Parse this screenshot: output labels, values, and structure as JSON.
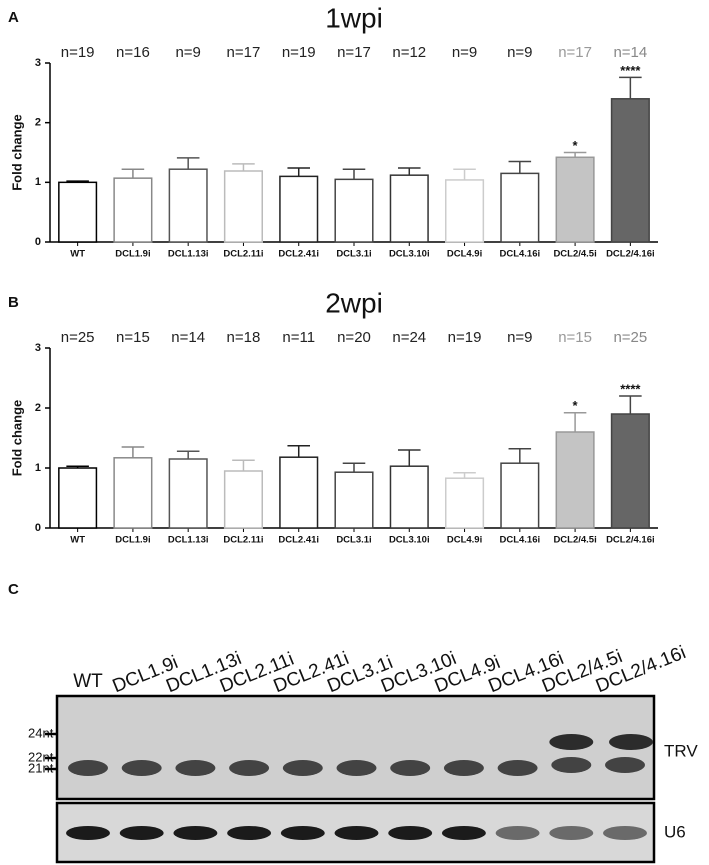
{
  "chart_data": [
    {
      "type": "bar",
      "panel_label": "A",
      "title": "1wpi",
      "y_label": "Fold change",
      "categories": [
        "WT",
        "DCL1.9i",
        "DCL1.13i",
        "DCL2.11i",
        "DCL2.41i",
        "DCL3.1i",
        "DCL3.10i",
        "DCL4.9i",
        "DCL4.16i",
        "DCL2/4.5i",
        "DCL2/4.16i"
      ],
      "values": [
        1.0,
        1.07,
        1.22,
        1.19,
        1.1,
        1.05,
        1.12,
        1.04,
        1.15,
        1.42,
        2.4
      ],
      "errors": [
        0.02,
        0.15,
        0.19,
        0.12,
        0.14,
        0.17,
        0.12,
        0.18,
        0.2,
        0.08,
        0.36
      ],
      "n_labels": [
        "n=19",
        "n=16",
        "n=9",
        "n=17",
        "n=19",
        "n=17",
        "n=12",
        "n=9",
        "n=9",
        "n=17",
        "n=14"
      ],
      "n_label_colors": [
        "#222",
        "#222",
        "#222",
        "#222",
        "#222",
        "#222",
        "#222",
        "#222",
        "#222",
        "#999",
        "#888"
      ],
      "significance": [
        null,
        null,
        null,
        null,
        null,
        null,
        null,
        null,
        null,
        "*",
        "****"
      ],
      "bar_colors": [
        "#000",
        "#888",
        "#555",
        "#bbb",
        "#222",
        "#444",
        "#333",
        "#ccc",
        "#444",
        "#999",
        "#444"
      ],
      "bar_fills": [
        "#fff",
        "#fff",
        "#fff",
        "#fff",
        "#fff",
        "#fff",
        "#fff",
        "#fff",
        "#fff",
        "#c4c4c4",
        "#666"
      ],
      "ylim": [
        0,
        3
      ],
      "yticks": [
        0,
        1,
        2,
        3
      ]
    },
    {
      "type": "bar",
      "panel_label": "B",
      "title": "2wpi",
      "y_label": "Fold change",
      "categories": [
        "WT",
        "DCL1.9i",
        "DCL1.13i",
        "DCL2.11i",
        "DCL2.41i",
        "DCL3.1i",
        "DCL3.10i",
        "DCL4.9i",
        "DCL4.16i",
        "DCL2/4.5i",
        "DCL2/4.16i"
      ],
      "values": [
        1.0,
        1.17,
        1.15,
        0.95,
        1.18,
        0.93,
        1.03,
        0.83,
        1.08,
        1.6,
        1.9
      ],
      "errors": [
        0.03,
        0.18,
        0.13,
        0.18,
        0.19,
        0.15,
        0.27,
        0.09,
        0.24,
        0.32,
        0.3
      ],
      "n_labels": [
        "n=25",
        "n=15",
        "n=14",
        "n=18",
        "n=11",
        "n=20",
        "n=24",
        "n=19",
        "n=9",
        "n=15",
        "n=25"
      ],
      "n_label_colors": [
        "#222",
        "#222",
        "#222",
        "#222",
        "#222",
        "#222",
        "#222",
        "#222",
        "#222",
        "#999",
        "#888"
      ],
      "significance": [
        null,
        null,
        null,
        null,
        null,
        null,
        null,
        null,
        null,
        "*",
        "****"
      ],
      "bar_colors": [
        "#000",
        "#888",
        "#555",
        "#bbb",
        "#222",
        "#444",
        "#333",
        "#ccc",
        "#444",
        "#999",
        "#444"
      ],
      "bar_fills": [
        "#fff",
        "#fff",
        "#fff",
        "#fff",
        "#fff",
        "#fff",
        "#fff",
        "#fff",
        "#fff",
        "#c4c4c4",
        "#666"
      ],
      "ylim": [
        0,
        3
      ],
      "yticks": [
        0,
        1,
        2,
        3
      ]
    }
  ],
  "blot": {
    "panel_label": "C",
    "lanes": [
      "WT",
      "DCL1.9i",
      "DCL1.13i",
      "DCL2.11i",
      "DCL2.41i",
      "DCL3.1i",
      "DCL3.10i",
      "DCL4.9i",
      "DCL4.16i",
      "DCL2/4.5i",
      "DCL2/4.16i"
    ],
    "markers": [
      "24nt",
      "22nt",
      "21nt"
    ],
    "rows": [
      "TRV",
      "U6"
    ]
  }
}
